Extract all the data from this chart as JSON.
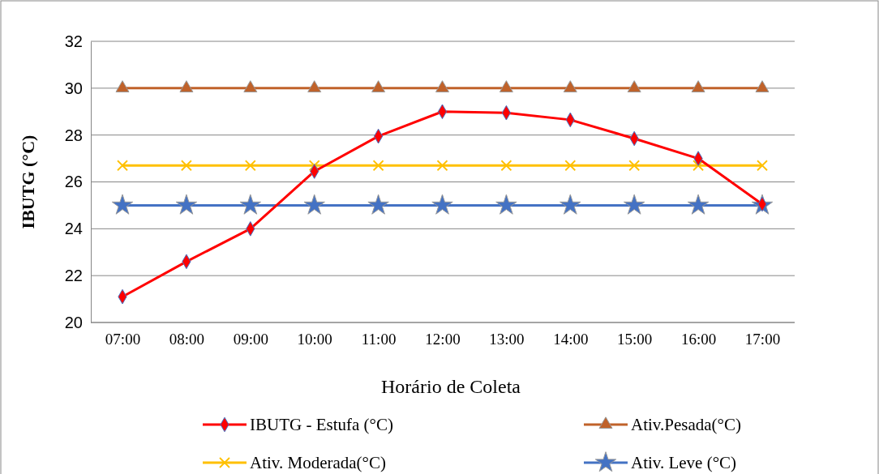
{
  "chart_data": {
    "type": "line",
    "xlabel": "Horário de Coleta",
    "ylabel": "IBUTG (°C)",
    "categories": [
      "07:00",
      "08:00",
      "09:00",
      "10:00",
      "11:00",
      "12:00",
      "13:00",
      "14:00",
      "15:00",
      "16:00",
      "17:00"
    ],
    "ylim": [
      20,
      32
    ],
    "yticks": [
      20,
      22,
      24,
      26,
      28,
      30,
      32
    ],
    "grid": "y",
    "legend": "bottom",
    "series": [
      {
        "name": "IBUTG - Estufa (°C)",
        "color": "#ff0000",
        "marker": "diamond",
        "values": [
          21.1,
          22.6,
          24.0,
          26.45,
          27.95,
          29.0,
          28.95,
          28.65,
          27.85,
          27.0,
          25.05
        ]
      },
      {
        "name": "Ativ.Pesada(°C)",
        "color": "#c0622a",
        "marker": "triangle",
        "values": [
          30,
          30,
          30,
          30,
          30,
          30,
          30,
          30,
          30,
          30,
          30
        ]
      },
      {
        "name": "Ativ. Moderada(°C)",
        "color": "#ffc000",
        "marker": "cross",
        "values": [
          26.7,
          26.7,
          26.7,
          26.7,
          26.7,
          26.7,
          26.7,
          26.7,
          26.7,
          26.7,
          26.7
        ]
      },
      {
        "name": "Ativ. Leve (°C)",
        "color": "#4472c4",
        "marker": "star",
        "values": [
          25,
          25,
          25,
          25,
          25,
          25,
          25,
          25,
          25,
          25,
          25
        ]
      }
    ]
  }
}
